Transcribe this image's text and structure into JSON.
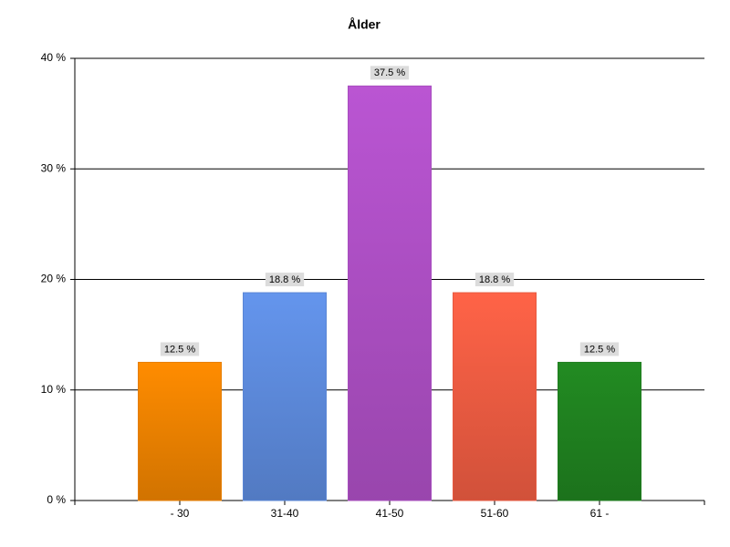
{
  "chart_data": {
    "type": "bar",
    "title": "Ålder",
    "categories": [
      "- 30",
      "31-40",
      "41-50",
      "51-60",
      "61 -"
    ],
    "values": [
      12.5,
      18.8,
      37.5,
      18.8,
      12.5
    ],
    "value_labels": [
      "12.5 %",
      "18.8 %",
      "37.5 %",
      "18.8 %",
      "12.5 %"
    ],
    "colors": [
      "#ff8c00",
      "#6495ed",
      "#ba55d3",
      "#ff6347",
      "#228b22"
    ],
    "ylim": [
      0,
      40
    ],
    "yticks": [
      {
        "value": 0,
        "label": "0 %"
      },
      {
        "value": 10,
        "label": "10 %"
      },
      {
        "value": 20,
        "label": "20 %"
      },
      {
        "value": 30,
        "label": "30 %"
      },
      {
        "value": 40,
        "label": "40 %"
      }
    ],
    "grid": true
  }
}
